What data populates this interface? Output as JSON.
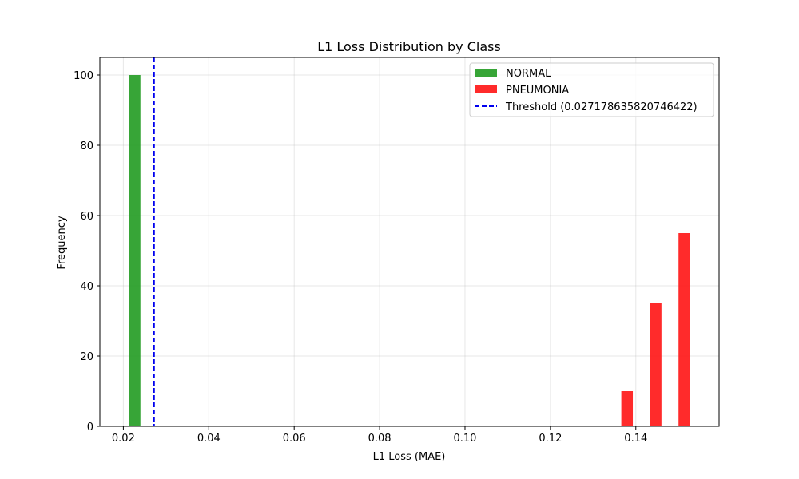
{
  "chart_data": {
    "type": "bar",
    "title": "L1 Loss Distribution by Class",
    "xlabel": "L1 Loss (MAE)",
    "ylabel": "Frequency",
    "xlim": [
      0.0145,
      0.1595
    ],
    "ylim": [
      0,
      105
    ],
    "xticks": [
      "0.02",
      "0.04",
      "0.06",
      "0.08",
      "0.10",
      "0.12",
      "0.14"
    ],
    "xtick_values": [
      0.02,
      0.04,
      0.06,
      0.08,
      0.1,
      0.12,
      0.14
    ],
    "yticks": [
      "0",
      "20",
      "40",
      "60",
      "80",
      "100"
    ],
    "ytick_values": [
      0,
      20,
      40,
      60,
      80,
      100
    ],
    "grid": true,
    "legend_position": "top-right",
    "series": [
      {
        "name": "NORMAL",
        "color": "#2ca02c",
        "bins": [
          {
            "start": 0.0213,
            "end": 0.024,
            "count": 100
          }
        ]
      },
      {
        "name": "PNEUMONIA",
        "color": "#ff2020",
        "bins": [
          {
            "start": 0.1366,
            "end": 0.1393,
            "count": 10
          },
          {
            "start": 0.1433,
            "end": 0.146,
            "count": 35
          },
          {
            "start": 0.15,
            "end": 0.1527,
            "count": 55
          }
        ]
      }
    ],
    "threshold": {
      "label": "Threshold (0.027178635820746422)",
      "value": 0.027178635820746422,
      "color": "#0000ee",
      "style": "dashed"
    }
  }
}
